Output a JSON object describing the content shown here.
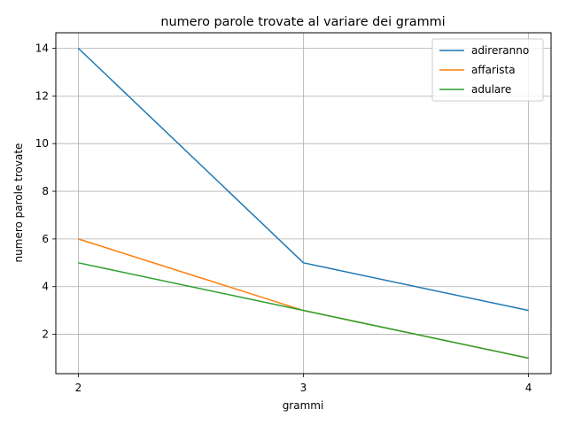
{
  "chart_data": {
    "type": "line",
    "title": "numero parole trovate al variare dei grammi",
    "xlabel": "grammi",
    "ylabel": "numero parole trovate",
    "x": [
      2,
      3,
      4
    ],
    "xticks": [
      2,
      3,
      4
    ],
    "yticks": [
      2,
      4,
      6,
      8,
      10,
      12,
      14
    ],
    "xlim": [
      1.9,
      4.1
    ],
    "ylim": [
      0.35,
      14.65
    ],
    "grid": true,
    "legend_position": "top-right",
    "series": [
      {
        "name": "adireranno",
        "color": "#1f77b4",
        "values": [
          14,
          5,
          3
        ]
      },
      {
        "name": "affarista",
        "color": "#ff7f0e",
        "values": [
          6,
          3,
          1
        ]
      },
      {
        "name": "adulare",
        "color": "#2ca02c",
        "values": [
          5,
          3,
          1
        ]
      }
    ]
  }
}
